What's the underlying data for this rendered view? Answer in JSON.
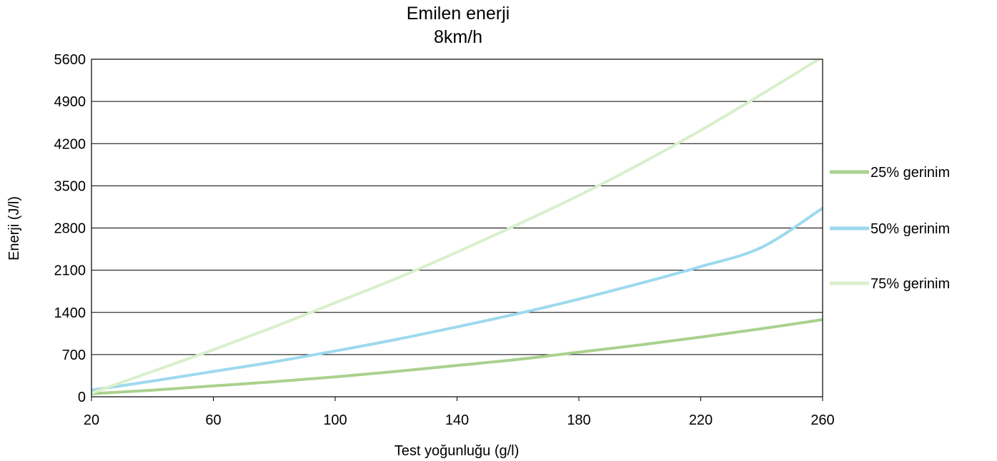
{
  "chart_data": {
    "type": "line",
    "title": "Emilen enerji",
    "subtitle": "8km/h",
    "xlabel": "Test yoğunluğu (g/l)",
    "ylabel": "Enerji (J/l)",
    "xlim": [
      20,
      260
    ],
    "ylim": [
      0,
      5600
    ],
    "xticks": [
      20,
      60,
      100,
      140,
      180,
      220,
      260
    ],
    "yticks": [
      0,
      700,
      1400,
      2100,
      2800,
      3500,
      4200,
      4900,
      5600
    ],
    "grid": "horizontal",
    "legend_position": "right",
    "x": [
      20,
      40,
      60,
      80,
      100,
      120,
      140,
      160,
      180,
      200,
      220,
      240,
      260
    ],
    "series": [
      {
        "name": "25% gerinim",
        "color": "#a9d18e",
        "values": [
          50,
          110,
          180,
          250,
          330,
          420,
          520,
          620,
          740,
          860,
          990,
          1130,
          1280
        ]
      },
      {
        "name": "50% gerinim",
        "color": "#9dd9ee",
        "values": [
          110,
          260,
          420,
          580,
          760,
          950,
          1160,
          1380,
          1620,
          1880,
          2160,
          2480,
          3130
        ]
      },
      {
        "name": "75% gerinim",
        "color": "#d9efcb",
        "values": [
          60,
          420,
          780,
          1160,
          1560,
          1960,
          2400,
          2860,
          3340,
          3860,
          4420,
          5020,
          5640
        ]
      }
    ]
  }
}
